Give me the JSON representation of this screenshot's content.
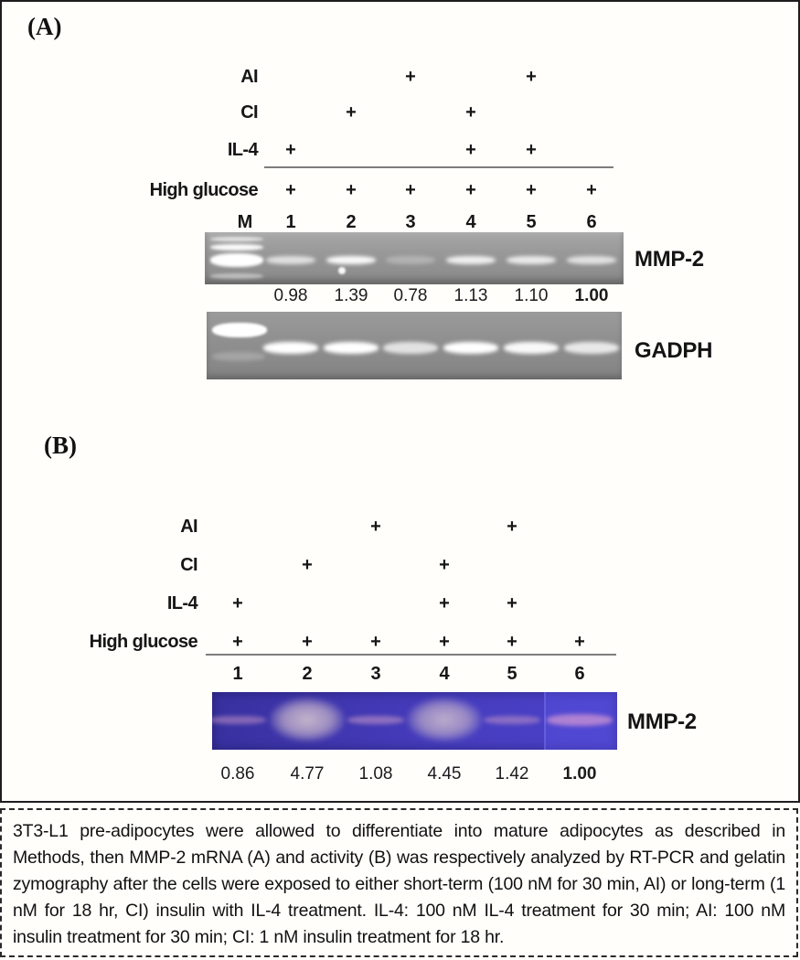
{
  "figure": {
    "panel_a": {
      "tag": "(A)",
      "treatment_rows": [
        {
          "label": "AI",
          "marks": [
            "",
            "",
            "+",
            "",
            "+",
            ""
          ]
        },
        {
          "label": "CI",
          "marks": [
            "",
            "+",
            "",
            "+",
            "",
            ""
          ]
        },
        {
          "label": "IL-4",
          "marks": [
            "+",
            "",
            "",
            "+",
            "+",
            ""
          ]
        },
        {
          "label": "High glucose",
          "marks": [
            "+",
            "+",
            "+",
            "+",
            "+",
            "+"
          ]
        }
      ],
      "lane_header": [
        "M",
        "1",
        "2",
        "3",
        "4",
        "5",
        "6"
      ],
      "gels": [
        {
          "name": "mmp2-rtpcr-gel",
          "label": "MMP-2",
          "values": [
            "0.98",
            "1.39",
            "0.78",
            "1.13",
            "1.10",
            "1.00"
          ],
          "band_intensities": [
            0.7,
            0.95,
            0.28,
            0.85,
            0.8,
            0.72
          ]
        },
        {
          "name": "gadph-gel",
          "label": "GADPH",
          "values": [],
          "band_intensities": [
            1,
            1,
            0.75,
            1,
            0.95,
            0.8
          ]
        }
      ]
    },
    "panel_b": {
      "tag": "(B)",
      "treatment_rows": [
        {
          "label": "AI",
          "marks": [
            "",
            "",
            "+",
            "",
            "+",
            ""
          ]
        },
        {
          "label": "CI",
          "marks": [
            "",
            "+",
            "",
            "+",
            "",
            ""
          ]
        },
        {
          "label": "IL-4",
          "marks": [
            "+",
            "",
            "",
            "+",
            "+",
            ""
          ]
        },
        {
          "label": "High glucose",
          "marks": [
            "+",
            "+",
            "+",
            "+",
            "+",
            "+"
          ]
        }
      ],
      "lane_header": [
        "1",
        "2",
        "3",
        "4",
        "5",
        "6"
      ],
      "gel": {
        "name": "mmp2-zymography-gel",
        "label": "MMP-2",
        "values": [
          "0.86",
          "4.77",
          "1.08",
          "4.45",
          "1.42",
          "1.00"
        ],
        "band_styles": [
          "faint",
          "blob",
          "faint",
          "blob",
          "faint",
          "wide"
        ],
        "band_intensities": [
          0.5,
          0.92,
          0.55,
          0.85,
          0.5,
          0.6
        ]
      }
    },
    "caption": "3T3-L1 pre-adipocytes were allowed to differentiate into mature adipocytes as described in Methods, then MMP-2 mRNA (A) and activity (B) was respectively analyzed by RT-PCR and gelatin zymography after the cells were exposed to either short-term (100 nM for 30 min, AI) or long-term (1 nM for 18 hr, CI) insulin with IL-4 treatment. IL-4: 100 nM IL-4 treatment for 30 min; AI: 100 nM insulin treatment for 30 min; CI: 1 nM insulin treatment for 18 hr.",
    "colors": {
      "gel_gray": "#979797",
      "gel_blue": "#4238b4",
      "band_white": "#ffffff",
      "zym_band_pink": "#d2a0cc",
      "border_black": "#1e1e1e"
    }
  }
}
